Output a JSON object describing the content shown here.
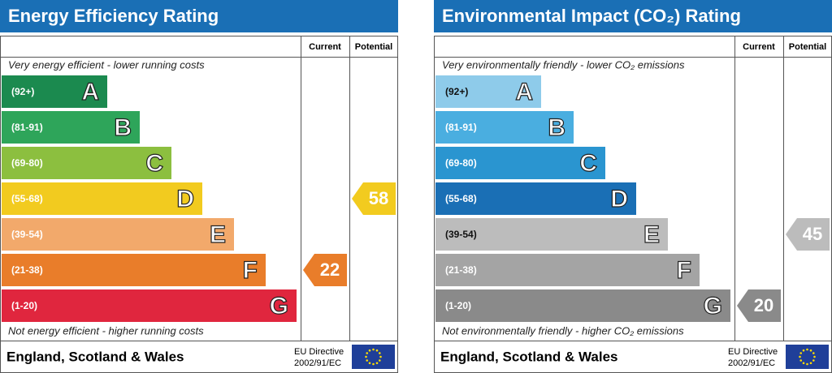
{
  "panels": [
    {
      "title": "Energy Efficiency Rating",
      "columns": [
        "Current",
        "Potential"
      ],
      "top_note": "Very energy efficient - lower running costs",
      "bands": [
        {
          "range": "(92+)",
          "letter": "A",
          "color": "#1b8a4f"
        },
        {
          "range": "(81-91)",
          "letter": "B",
          "color": "#2ea55a"
        },
        {
          "range": "(69-80)",
          "letter": "C",
          "color": "#8cbf3f"
        },
        {
          "range": "(55-68)",
          "letter": "D",
          "color": "#f2cb1f"
        },
        {
          "range": "(39-54)",
          "letter": "E",
          "color": "#f2a96b"
        },
        {
          "range": "(21-38)",
          "letter": "F",
          "color": "#e97d2a"
        },
        {
          "range": "(1-20)",
          "letter": "G",
          "color": "#e0263e"
        }
      ],
      "bottom_note": "Not energy efficient - higher running costs",
      "current": 22,
      "potential": 58,
      "footer": "England, Scotland & Wales",
      "directive": [
        "EU Directive",
        "2002/91/EC"
      ]
    },
    {
      "title": "Environmental Impact (CO₂) Rating",
      "columns": [
        "Current",
        "Potential"
      ],
      "top_note": "Very environmentally friendly - lower CO₂ emissions",
      "bands": [
        {
          "range": "(92+)",
          "letter": "A",
          "color": "#8ecbea"
        },
        {
          "range": "(81-91)",
          "letter": "B",
          "color": "#4aaee0"
        },
        {
          "range": "(69-80)",
          "letter": "C",
          "color": "#2a95d0"
        },
        {
          "range": "(55-68)",
          "letter": "D",
          "color": "#1a6fb5"
        },
        {
          "range": "(39-54)",
          "letter": "E",
          "color": "#bcbcbc"
        },
        {
          "range": "(21-38)",
          "letter": "F",
          "color": "#a4a4a4"
        },
        {
          "range": "(1-20)",
          "letter": "G",
          "color": "#8a8a8a"
        }
      ],
      "bottom_note": "Not environmentally friendly - higher CO₂ emissions",
      "current": 20,
      "potential": 45,
      "footer": "England, Scotland & Wales",
      "directive": [
        "EU Directive",
        "2002/91/EC"
      ]
    }
  ]
}
